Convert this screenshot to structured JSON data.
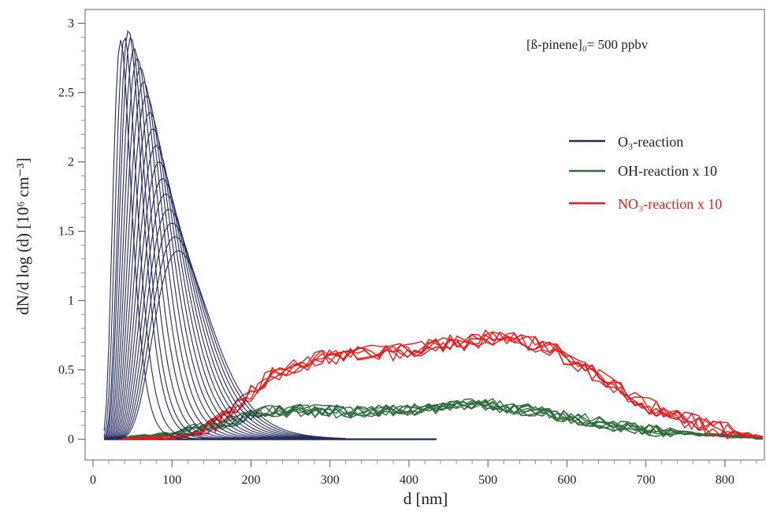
{
  "chart_data": {
    "type": "line",
    "title": "",
    "annotation": "[ß-pinene]₀= 500 ppbv",
    "xlabel": "d [nm]",
    "ylabel": "dN/d log (d) [10⁶ cm⁻³]",
    "xlim": [
      -10,
      850
    ],
    "ylim": [
      -0.15,
      3.1
    ],
    "xticks": [
      0,
      100,
      200,
      300,
      400,
      500,
      600,
      700,
      800
    ],
    "yticks": [
      0,
      0.5,
      1,
      1.5,
      2,
      2.5,
      3
    ],
    "ytick_labels": [
      "0",
      "0.5",
      "1",
      "1.5",
      "2",
      "2.5",
      "3"
    ],
    "legend_position": "right",
    "grid": false,
    "series": [
      {
        "name": "O₃-reaction",
        "color": "#232a5e",
        "note": "family of curves; each entry is [peak diameter nm, peak height]",
        "curves": [
          [
            35,
            2.88
          ],
          [
            40,
            2.9
          ],
          [
            45,
            2.95
          ],
          [
            48,
            2.9
          ],
          [
            52,
            2.82
          ],
          [
            56,
            2.75
          ],
          [
            60,
            2.68
          ],
          [
            64,
            2.58
          ],
          [
            68,
            2.48
          ],
          [
            72,
            2.36
          ],
          [
            76,
            2.24
          ],
          [
            80,
            2.12
          ],
          [
            84,
            2.0
          ],
          [
            88,
            1.88
          ],
          [
            92,
            1.77
          ],
          [
            96,
            1.66
          ],
          [
            100,
            1.56
          ],
          [
            104,
            1.46
          ],
          [
            108,
            1.36
          ]
        ],
        "baseline_x": [
          15,
          435
        ],
        "baseline_y": 0
      },
      {
        "name": "OH-reaction x 10",
        "color": "#2e6b3e",
        "x": [
          20,
          60,
          100,
          140,
          180,
          220,
          260,
          300,
          340,
          380,
          420,
          460,
          500,
          540,
          580,
          620,
          660,
          700,
          740,
          780,
          820,
          850
        ],
        "y": [
          0.0,
          0.02,
          0.04,
          0.08,
          0.14,
          0.2,
          0.21,
          0.2,
          0.2,
          0.21,
          0.22,
          0.24,
          0.25,
          0.22,
          0.18,
          0.14,
          0.1,
          0.07,
          0.05,
          0.03,
          0.02,
          0.01
        ]
      },
      {
        "name": "NO₃-reaction x 10",
        "color": "#e51b1b",
        "x": [
          20,
          60,
          100,
          140,
          180,
          220,
          260,
          300,
          340,
          380,
          420,
          460,
          500,
          540,
          580,
          620,
          660,
          700,
          740,
          780,
          820,
          850
        ],
        "y": [
          0.0,
          0.0,
          0.01,
          0.05,
          0.22,
          0.45,
          0.55,
          0.6,
          0.62,
          0.63,
          0.67,
          0.7,
          0.74,
          0.72,
          0.65,
          0.53,
          0.38,
          0.25,
          0.16,
          0.09,
          0.04,
          0.01
        ]
      }
    ]
  }
}
